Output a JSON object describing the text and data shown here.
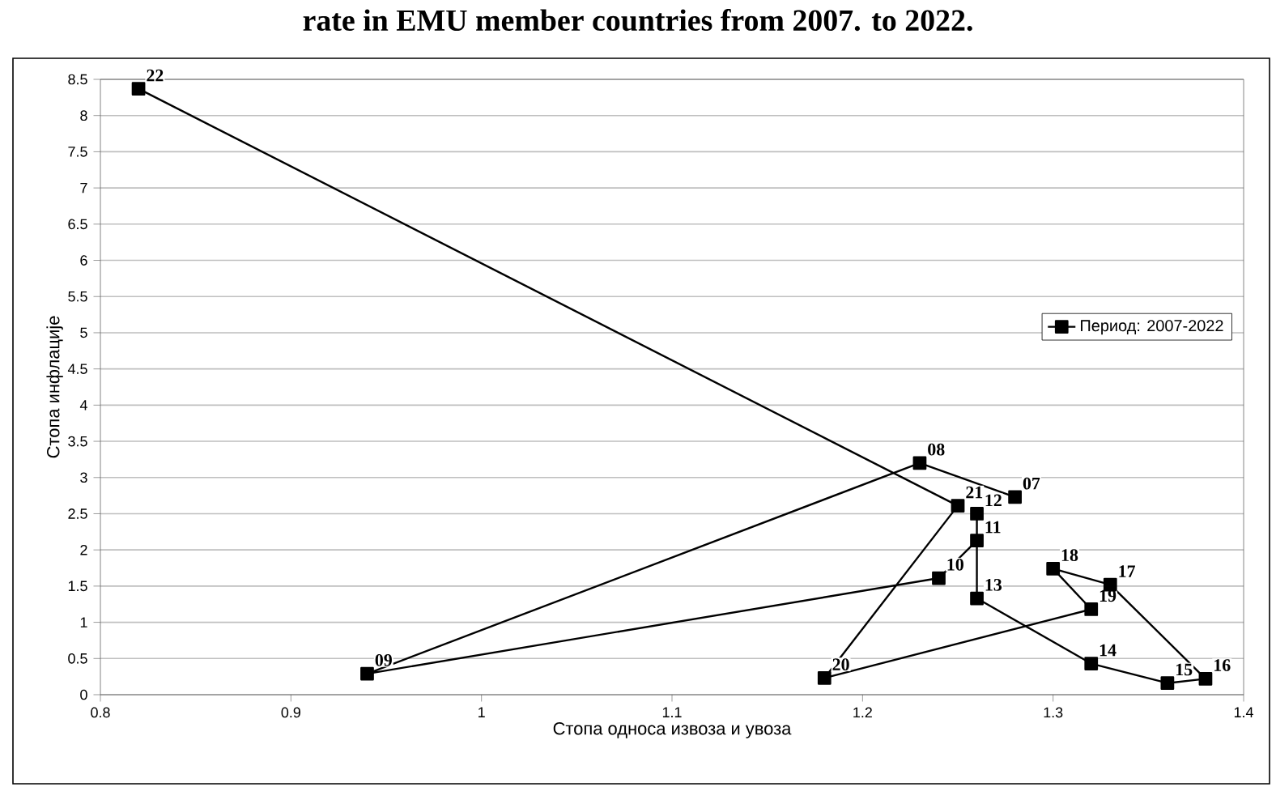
{
  "chart_data": {
    "type": "line",
    "title": "rate in EMU member countries from 2007. to 2022.",
    "xlabel": "Стопа односа извоза и увоза",
    "ylabel": "Стопа инфлације",
    "x": [
      1.28,
      1.23,
      0.94,
      1.24,
      1.26,
      1.26,
      1.26,
      1.32,
      1.36,
      1.38,
      1.33,
      1.3,
      1.32,
      1.18,
      1.25,
      0.82
    ],
    "series": [
      {
        "name": "Период: 2007-2022",
        "color": "#000000",
        "values": [
          2.73,
          3.2,
          0.29,
          1.61,
          2.13,
          2.5,
          1.33,
          0.43,
          0.16,
          0.22,
          1.52,
          1.74,
          1.18,
          0.23,
          2.61,
          8.37
        ]
      }
    ],
    "annotations": [
      {
        "text": "07",
        "x": 1.28,
        "y": 2.73
      },
      {
        "text": "08",
        "x": 1.23,
        "y": 3.2
      },
      {
        "text": "09",
        "x": 0.94,
        "y": 0.29
      },
      {
        "text": "10",
        "x": 1.24,
        "y": 1.61
      },
      {
        "text": "11",
        "x": 1.26,
        "y": 2.13
      },
      {
        "text": "12",
        "x": 1.26,
        "y": 2.5
      },
      {
        "text": "13",
        "x": 1.26,
        "y": 1.33
      },
      {
        "text": "14",
        "x": 1.32,
        "y": 0.43
      },
      {
        "text": "15",
        "x": 1.36,
        "y": 0.16
      },
      {
        "text": "16",
        "x": 1.38,
        "y": 0.22
      },
      {
        "text": "17",
        "x": 1.33,
        "y": 1.52
      },
      {
        "text": "18",
        "x": 1.3,
        "y": 1.74
      },
      {
        "text": "19",
        "x": 1.32,
        "y": 1.18
      },
      {
        "text": "20",
        "x": 1.18,
        "y": 0.23
      },
      {
        "text": "21",
        "x": 1.25,
        "y": 2.61
      },
      {
        "text": "22",
        "x": 0.82,
        "y": 8.37
      }
    ],
    "xlim": [
      0.8,
      1.4
    ],
    "xticks": [
      0.8,
      0.9,
      1,
      1.1,
      1.2,
      1.3,
      1.4
    ],
    "ylim": [
      0,
      8.5
    ],
    "yticks": [
      0,
      0.5,
      1,
      1.5,
      2,
      2.5,
      3,
      3.5,
      4,
      4.5,
      5,
      5.5,
      6,
      6.5,
      7,
      7.5,
      8,
      8.5
    ],
    "grid": "y",
    "legend": "right",
    "marker": "square",
    "line_style": "solid"
  }
}
